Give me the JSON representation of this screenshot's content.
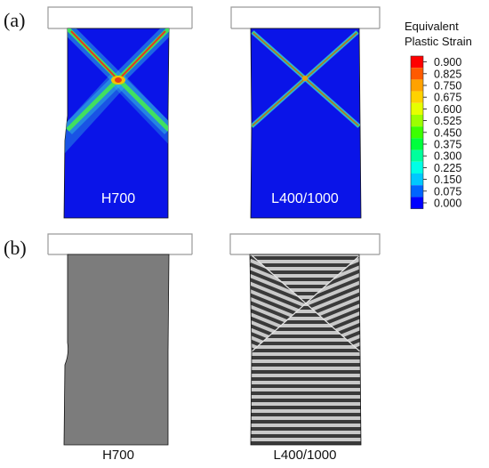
{
  "panel_a": {
    "label": "(a)",
    "left_caption": "H700",
    "right_caption": "L400/1000"
  },
  "panel_b": {
    "label": "(b)",
    "left_caption": "H700",
    "right_caption": "L400/1000"
  },
  "legend": {
    "title_line1": "Equivalent",
    "title_line2": "Plastic Strain",
    "entries": [
      {
        "value": "0.900",
        "color": "#ff0000"
      },
      {
        "value": "0.825",
        "color": "#ff5a00"
      },
      {
        "value": "0.750",
        "color": "#ffa200"
      },
      {
        "value": "0.675",
        "color": "#ffd200"
      },
      {
        "value": "0.600",
        "color": "#e6ff00"
      },
      {
        "value": "0.525",
        "color": "#9cff00"
      },
      {
        "value": "0.450",
        "color": "#3cff00"
      },
      {
        "value": "0.375",
        "color": "#00ff3c"
      },
      {
        "value": "0.300",
        "color": "#00ff9c"
      },
      {
        "value": "0.225",
        "color": "#00ffe6"
      },
      {
        "value": "0.150",
        "color": "#00c8ff"
      },
      {
        "value": "0.075",
        "color": "#0064ff"
      },
      {
        "value": "0.000",
        "color": "#0000ff"
      }
    ]
  },
  "colors": {
    "specimen_base": "#0a14e8",
    "shear_band_outer": "#37c9e0",
    "shear_band_inner": "#40e060",
    "shear_band_core": "#e83a1a",
    "deformed_mesh_gray": "#7c7c7c",
    "layer_dark": "#3a3a3a",
    "layer_light": "#c9c9c9"
  }
}
